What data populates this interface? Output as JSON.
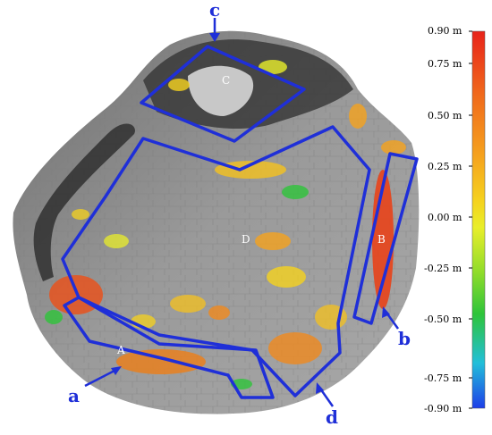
{
  "regions": {
    "A": "A",
    "B": "B",
    "C": "C",
    "D": "D"
  },
  "pointers": {
    "a": "a",
    "b": "b",
    "c": "c",
    "d": "d"
  },
  "legend": {
    "ticks": [
      "0.90 m",
      "0.75 m",
      "0.50 m",
      "0.25 m",
      "0.00 m",
      "-0.25 m",
      "-0.50 m",
      "-0.75 m",
      "-0.90 m"
    ],
    "range": [
      -0.9,
      0.9
    ],
    "colors_top_to_bottom": [
      "#e8231a",
      "#f06a1c",
      "#f5a21e",
      "#f5d21e",
      "#e9ee2a",
      "#8fdc2a",
      "#2ec43a",
      "#22bfd9",
      "#1e3ee8"
    ]
  },
  "colors": {
    "outline": "#1f2fd8",
    "arrow": "#1f2fd8"
  }
}
